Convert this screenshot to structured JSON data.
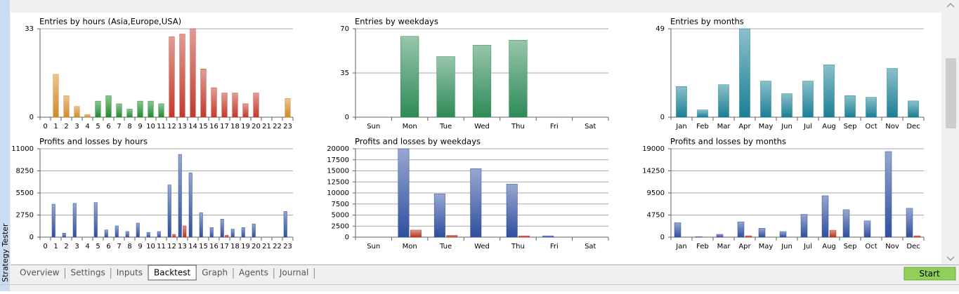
{
  "chart_data": [
    {
      "type": "bar",
      "title": "Entries by hours (Asia,Europe,USA)",
      "categories": [
        "0",
        "1",
        "2",
        "3",
        "4",
        "5",
        "6",
        "7",
        "8",
        "9",
        "10",
        "11",
        "12",
        "13",
        "14",
        "15",
        "16",
        "17",
        "18",
        "19",
        "20",
        "21",
        "22",
        "23"
      ],
      "values": [
        0,
        16,
        8,
        4,
        1,
        6,
        8,
        5,
        3,
        6,
        6,
        5,
        30,
        31,
        33,
        18,
        11,
        9,
        9,
        5,
        9,
        0,
        0,
        7
      ],
      "colors": [
        "#d08a26",
        "#d08a26",
        "#d08a26",
        "#d08a26",
        "#d08a26",
        "#1f8a2a",
        "#1f8a2a",
        "#1f8a2a",
        "#1f8a2a",
        "#1f8a2a",
        "#1f8a2a",
        "#1f8a2a",
        "#c03a2b",
        "#c03a2b",
        "#c03a2b",
        "#c03a2b",
        "#c03a2b",
        "#c03a2b",
        "#c03a2b",
        "#c03a2b",
        "#c03a2b",
        "#d08a26",
        "#d08a26",
        "#d08a26"
      ],
      "ylim": [
        0,
        33
      ],
      "yticks": [
        0,
        33
      ],
      "grid": true
    },
    {
      "type": "bar",
      "title": "Entries by weekdays",
      "categories": [
        "Sun",
        "Mon",
        "Tue",
        "Wed",
        "Thu",
        "Fri",
        "Sat"
      ],
      "values": [
        0,
        64,
        48,
        57,
        61,
        0,
        0
      ],
      "color": "#2e8b57",
      "ylim": [
        0,
        70
      ],
      "yticks": [
        0,
        35,
        70
      ],
      "grid": true
    },
    {
      "type": "bar",
      "title": "Entries by months",
      "categories": [
        "Jan",
        "Feb",
        "Mar",
        "Apr",
        "May",
        "Jun",
        "Jul",
        "Aug",
        "Sep",
        "Oct",
        "Nov",
        "Dec"
      ],
      "values": [
        17,
        4,
        18,
        49,
        20,
        13,
        20,
        29,
        12,
        11,
        27,
        9
      ],
      "color": "#1a7f95",
      "ylim": [
        0,
        49
      ],
      "yticks": [
        0,
        49
      ],
      "grid": true
    },
    {
      "type": "bar",
      "title": "Profits and losses by hours",
      "categories": [
        "0",
        "1",
        "2",
        "3",
        "4",
        "5",
        "6",
        "7",
        "8",
        "9",
        "10",
        "11",
        "12",
        "13",
        "14",
        "15",
        "16",
        "17",
        "18",
        "19",
        "20",
        "21",
        "22",
        "23"
      ],
      "series": [
        {
          "name": "Profits",
          "color": "#2f4f9e",
          "values": [
            0,
            4100,
            500,
            4200,
            0,
            4300,
            900,
            1400,
            700,
            1750,
            600,
            700,
            6500,
            10300,
            8000,
            3050,
            1200,
            2250,
            1000,
            1200,
            1650,
            0,
            0,
            3200
          ]
        },
        {
          "name": "Losses",
          "color": "#b8321c",
          "values": [
            0,
            0,
            0,
            0,
            0,
            0,
            0,
            0,
            0,
            0,
            0,
            0,
            350,
            1400,
            0,
            0,
            0,
            250,
            0,
            0,
            0,
            0,
            0,
            0
          ]
        }
      ],
      "ylim": [
        0,
        11000
      ],
      "yticks": [
        0,
        2750,
        5500,
        8250,
        11000
      ],
      "grid": true
    },
    {
      "type": "bar",
      "title": "Profits and losses by weekdays",
      "categories": [
        "Sun",
        "Mon",
        "Tue",
        "Wed",
        "Thu",
        "Fri",
        "Sat"
      ],
      "series": [
        {
          "name": "Profits",
          "color": "#2f4f9e",
          "values": [
            0,
            20000,
            9800,
            15500,
            12000,
            300,
            0
          ]
        },
        {
          "name": "Losses",
          "color": "#b8321c",
          "values": [
            0,
            1600,
            400,
            0,
            300,
            0,
            0
          ]
        }
      ],
      "ylim": [
        0,
        20000
      ],
      "yticks": [
        0,
        2500,
        5000,
        7500,
        10000,
        12500,
        15000,
        17500,
        20000
      ],
      "grid": true
    },
    {
      "type": "bar",
      "title": "Profits and losses by months",
      "categories": [
        "Jan",
        "Feb",
        "Mar",
        "Apr",
        "May",
        "Jun",
        "Jul",
        "Aug",
        "Sep",
        "Oct",
        "Nov",
        "Dec"
      ],
      "series": [
        {
          "name": "Profits",
          "color": "#2f4f9e",
          "values": [
            3100,
            100,
            600,
            3300,
            1900,
            1200,
            4900,
            8900,
            5900,
            3500,
            18400,
            6200
          ]
        },
        {
          "name": "Losses",
          "color": "#b8321c",
          "values": [
            0,
            0,
            0,
            300,
            0,
            0,
            0,
            1500,
            0,
            0,
            0,
            300
          ]
        }
      ],
      "ylim": [
        0,
        19000
      ],
      "yticks": [
        0,
        4750,
        9500,
        14250,
        19000
      ],
      "grid": true
    }
  ],
  "side_label": "Strategy Tester",
  "tabs": [
    "Overview",
    "Settings",
    "Inputs",
    "Backtest",
    "Graph",
    "Agents",
    "Journal"
  ],
  "button": "Start"
}
